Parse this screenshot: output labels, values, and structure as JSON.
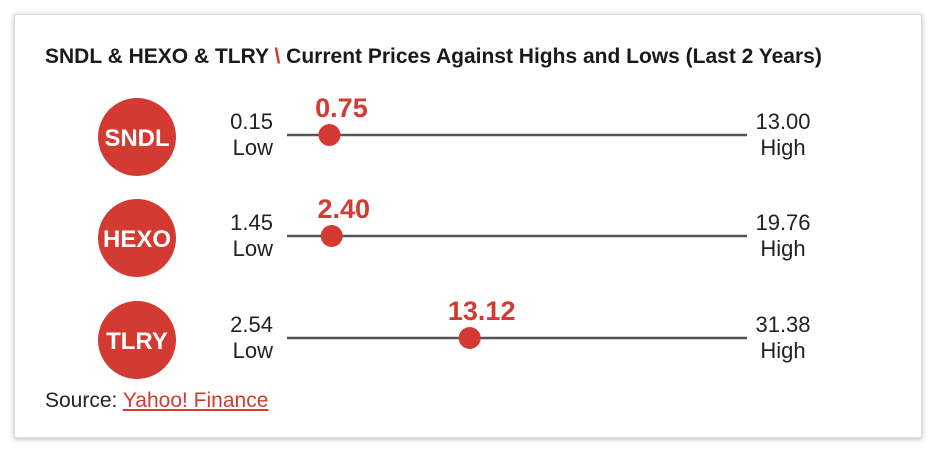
{
  "chart_data": {
    "type": "range",
    "title_part1": "SNDL & HEXO & TLRY",
    "title_sep": "\\",
    "title_part2": "Current Prices Against Highs and Lows (Last 2 Years)",
    "low_label": "Low",
    "high_label": "High",
    "series": [
      {
        "name": "SNDL",
        "low": "0.15",
        "high": "13.00",
        "current": "0.75"
      },
      {
        "name": "HEXO",
        "low": "1.45",
        "high": "19.76",
        "current": "2.40"
      },
      {
        "name": "TLRY",
        "low": "2.54",
        "high": "31.38",
        "current": "13.12"
      }
    ]
  },
  "source": {
    "label": "Source:",
    "link_text": "Yahoo! Finance"
  },
  "colors": {
    "accent": "#d33a32",
    "line": "#555555",
    "text": "#222222"
  }
}
